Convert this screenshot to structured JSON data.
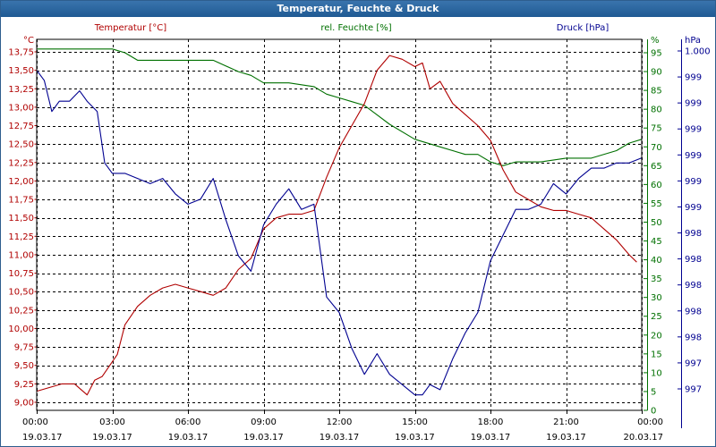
{
  "window": {
    "title": "Temperatur, Feuchte & Druck"
  },
  "chart_data": {
    "type": "line",
    "title": "Temperatur, Feuchte & Druck",
    "colors": {
      "temperature": "#b00000",
      "humidity": "#007000",
      "pressure": "#000090",
      "grid": "#000000"
    },
    "x_ticks": [
      {
        "time": "00:00",
        "date": "19.03.17",
        "h": 0
      },
      {
        "time": "03:00",
        "date": "19.03.17",
        "h": 3
      },
      {
        "time": "06:00",
        "date": "19.03.17",
        "h": 6
      },
      {
        "time": "09:00",
        "date": "19.03.17",
        "h": 9
      },
      {
        "time": "12:00",
        "date": "19.03.17",
        "h": 12
      },
      {
        "time": "15:00",
        "date": "19.03.17",
        "h": 15
      },
      {
        "time": "18:00",
        "date": "19.03.17",
        "h": 18
      },
      {
        "time": "21:00",
        "date": "19.03.17",
        "h": 21
      },
      {
        "time": "00:00",
        "date": "20.03.17",
        "h": 24
      }
    ],
    "xlim": [
      0,
      24
    ],
    "axes": {
      "temperature": {
        "label": "Temperatur [°C]",
        "unit": "°C",
        "ylim": [
          9.0,
          13.75
        ],
        "ticks": [
          "13,75",
          "13,50",
          "13,25",
          "13,00",
          "12,75",
          "12,50",
          "12,25",
          "12,00",
          "11,75",
          "11,50",
          "11,25",
          "11,00",
          "10,75",
          "10,50",
          "10,25",
          "10,00",
          "9,75",
          "9,50",
          "9,25",
          "9,00"
        ]
      },
      "humidity": {
        "label": "rel. Feuchte [%]",
        "unit": "%",
        "ylim": [
          0,
          100
        ],
        "ticks": [
          "95",
          "90",
          "85",
          "80",
          "75",
          "70",
          "65",
          "60",
          "55",
          "50",
          "45",
          "40",
          "35",
          "30",
          "25",
          "20",
          "15",
          "10",
          "5",
          "0"
        ]
      },
      "pressure": {
        "label": "Druck [hPa]",
        "unit": "hPa",
        "ylim": [
          996.6,
          1000.2
        ],
        "ticks": [
          "1.000",
          "999",
          "999",
          "999",
          "999",
          "999",
          "999",
          "998",
          "998",
          "998",
          "998",
          "998",
          "997",
          "997"
        ]
      }
    },
    "series": [
      {
        "name": "Temperatur [°C]",
        "axis": "temperature",
        "x": [
          0,
          0.5,
          1,
          1.5,
          2,
          2.3,
          2.6,
          2.9,
          3.2,
          3.5,
          4,
          4.5,
          5,
          5.5,
          6,
          6.5,
          7,
          7.5,
          8,
          8.5,
          9,
          9.5,
          10,
          10.5,
          11,
          11.5,
          12,
          12.5,
          13,
          13.5,
          14,
          14.5,
          15,
          15.3,
          15.6,
          16,
          16.5,
          17,
          17.5,
          18,
          18.5,
          19,
          19.5,
          20,
          20.5,
          21,
          21.5,
          22,
          22.5,
          23,
          23.5,
          23.8
        ],
        "values": [
          9.15,
          9.2,
          9.25,
          9.25,
          9.1,
          9.3,
          9.35,
          9.5,
          9.65,
          10.05,
          10.3,
          10.45,
          10.55,
          10.6,
          10.55,
          10.5,
          10.45,
          10.55,
          10.8,
          10.95,
          11.35,
          11.5,
          11.55,
          11.55,
          11.6,
          12.05,
          12.45,
          12.75,
          13.05,
          13.5,
          13.7,
          13.65,
          13.55,
          13.6,
          13.25,
          13.35,
          13.05,
          12.9,
          12.75,
          12.55,
          12.15,
          11.85,
          11.75,
          11.65,
          11.6,
          11.6,
          11.55,
          11.5,
          11.35,
          11.2,
          11.0,
          10.9
        ]
      },
      {
        "name": "rel. Feuchte [%]",
        "axis": "humidity",
        "x": [
          0,
          1,
          2,
          3,
          3.5,
          4,
          5,
          6,
          7,
          8,
          8.5,
          9,
          10,
          11,
          11.5,
          12,
          12.5,
          13,
          14,
          15,
          16,
          17,
          17.5,
          18,
          18.5,
          19,
          20,
          21,
          22,
          23,
          23.5,
          24
        ],
        "values": [
          96,
          96,
          96,
          96,
          95,
          93,
          93,
          93,
          93,
          90,
          89,
          87,
          87,
          86,
          84,
          83,
          82,
          81,
          76,
          72,
          70,
          68,
          68,
          66,
          65,
          66,
          66,
          67,
          67,
          69,
          71,
          72
        ]
      },
      {
        "name": "Druck [hPa]",
        "axis": "pressure",
        "x": [
          0,
          0.3,
          0.6,
          0.9,
          1.3,
          1.7,
          2,
          2.4,
          2.7,
          3,
          3.5,
          4,
          4.5,
          5,
          5.5,
          6,
          6.5,
          7,
          7.5,
          8,
          8.5,
          9,
          9.5,
          10,
          10.5,
          11,
          11.5,
          12,
          12.5,
          13,
          13.5,
          14,
          14.5,
          15,
          15.3,
          15.6,
          16,
          16.5,
          17,
          17.5,
          18,
          18.5,
          19,
          19.5,
          20,
          20.5,
          21,
          21.5,
          22,
          22.5,
          23,
          23.5,
          24
        ],
        "values": [
          999.9,
          999.8,
          999.5,
          999.6,
          999.6,
          999.7,
          999.6,
          999.5,
          999.0,
          998.9,
          998.9,
          998.85,
          998.8,
          998.85,
          998.7,
          998.6,
          998.65,
          998.85,
          998.45,
          998.1,
          997.95,
          998.4,
          998.6,
          998.75,
          998.55,
          998.6,
          997.7,
          997.55,
          997.2,
          996.95,
          997.15,
          996.95,
          996.85,
          996.75,
          996.75,
          996.85,
          996.8,
          997.1,
          997.35,
          997.55,
          998.05,
          998.3,
          998.55,
          998.55,
          998.6,
          998.8,
          998.7,
          998.85,
          998.95,
          998.95,
          999.0,
          999.0,
          999.05
        ]
      }
    ]
  }
}
